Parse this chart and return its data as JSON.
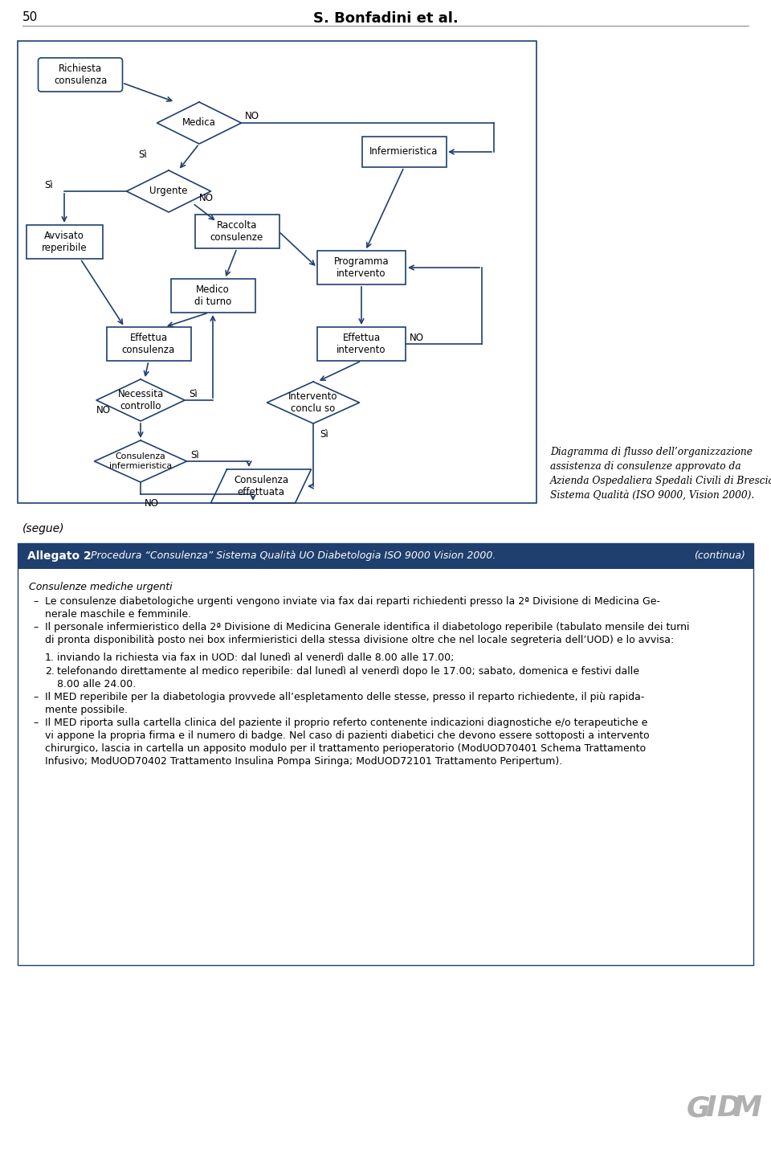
{
  "page_number": "50",
  "header_author": "S. Bonfadini et al.",
  "fc": "#1f3f6e",
  "bg": "#ffffff",
  "caption_text": "Diagramma di flusso dell’organizzazione\nassistenza di consulenze approvato da\nAzienda Ospedaliera Spedali Civili di Brescia\nSistema Qualità (ISO 9000, Vision 2000).",
  "segue_text": "(segue)",
  "allegato_label": "Allegato 2",
  "allegato_title": " Procedura “Consulenza” Sistema Qualità UO Diabetologia ISO 9000 Vision 2000.",
  "allegato_continua": "(continua)",
  "allegato_bg": "#1f3f6e",
  "body_title": "Consulenze mediche urgenti",
  "bullet1": "Le consulenze diabetologiche urgenti vengono inviate via fax dai reparti richiedenti presso la 2ª Divisione di Medicina Ge-\nnerale maschile e femminile.",
  "bullet2": "Il personale infermieristico della 2ª Divisione di Medicina Generale identifica il diabetologo reperibile (tabulato mensile dei turni\ndi pronta disponibilità posto nei box infermieristici della stessa divisione oltre che nel locale segreteria dell’UOD) e lo avvisa:",
  "sub1": "inviando la richiesta via fax in UOD: dal lunedì al venerdì dalle 8.00 alle 17.00;",
  "sub2": "telefonando direttamente al medico reperibile: dal lunedì al venerdì dopo le 17.00; sabato, domenica e festivi dalle\n8.00 alle 24.00.",
  "bullet3": "Il MED reperibile per la diabetologia provvede all’espletamento delle stesse, presso il reparto richiedente, il più rapida-\nmente possibile.",
  "bullet4": "Il MED riporta sulla cartella clinica del paziente il proprio referto contenente indicazioni diagnostiche e/o terapeutiche e\nvi appone la propria firma e il numero di badge. Nel caso di pazienti diabetici che devono essere sottoposti a intervento\nchirurgico, lascia in cartella un apposito modulo per il trattamento perioperatorio (ModUOD70401 Schema Trattamento\nInfusivo; ModUOD70402 Trattamento Insulina Pompa Siringa; ModUOD72101 Trattamento Peripertum).",
  "gidm_color": "#b0b0b0"
}
